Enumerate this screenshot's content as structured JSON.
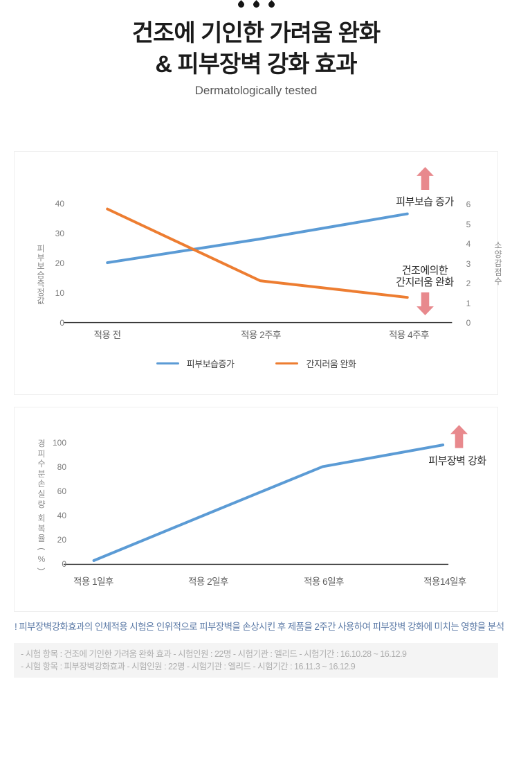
{
  "header": {
    "decoration_icon": "water-drop-icon",
    "title_line1": "건조에 기인한 가려움 완화",
    "title_line2": "& 피부장벽 강화 효과",
    "subtitle": "Dermatologically tested"
  },
  "colors": {
    "moisture_line_blue": "#5B9BD5",
    "itch_line_orange": "#ED7D31",
    "arrow_pink": "#E8898D",
    "warning_text_blue": "#5D7BA7",
    "info_box_bg": "#F4F4F4",
    "info_text_gray": "#AEAEAE"
  },
  "chart_data": [
    {
      "type": "line",
      "categories": [
        "적용 전",
        "적용 2주후",
        "적용 4주후"
      ],
      "series": [
        {
          "name": "피부보습증가",
          "axis": "left",
          "color": "#5B9BD5",
          "values": [
            20,
            28,
            36.5
          ]
        },
        {
          "name": "간지러움 완화",
          "axis": "right",
          "color": "#ED7D31",
          "values": [
            5.75,
            2.1,
            1.25
          ]
        }
      ],
      "left_axis": {
        "label": "피부보습측정값",
        "ticks": [
          0,
          10,
          20,
          30,
          40
        ],
        "range": [
          0,
          40
        ]
      },
      "right_axis": {
        "label": "소양감점수",
        "ticks": [
          0,
          1,
          2,
          3,
          4,
          5,
          6
        ],
        "range": [
          0,
          6
        ]
      },
      "annotations": [
        {
          "text": "피부보습 증가",
          "arrow": "up"
        },
        {
          "text_line1": "건조에의한",
          "text_line2": "간지러움 완화",
          "arrow": "down"
        }
      ],
      "legend": [
        "피부보습증가",
        "간지러움 완화"
      ],
      "grid": false,
      "legend_position": "bottom"
    },
    {
      "type": "line",
      "categories": [
        "적용 1일후",
        "적용 2일후",
        "적용 6일후",
        "적용14일후"
      ],
      "series": [
        {
          "name": "경피수분손실량 회복율",
          "axis": "left",
          "color": "#5B9BD5",
          "values": [
            2,
            41,
            80,
            98
          ]
        }
      ],
      "left_axis": {
        "label": "경피수분손실량 회복율(%)",
        "ticks": [
          0,
          20,
          40,
          60,
          80,
          100
        ],
        "range": [
          0,
          100
        ]
      },
      "annotations": [
        {
          "text": "피부장벽 강화",
          "arrow": "up"
        }
      ],
      "grid": false
    }
  ],
  "notes": {
    "warning": "! 피부장벽강화효과의 인체적용 시험은 인위적으로 피부장벽을 손상시킨 후 제품을 2주간 사용하여 피부장벽 강화에 미치는 영향을 분석",
    "tests": [
      "- 시험 항목 : 건조에 기인한 가려움 완화 효과  - 시험인원 : 22명  - 시험기관 : 엘리드  - 시험기간 : 16.10.28 ~ 16.12.9",
      "- 시험 항목 : 피부장벽강화효과  - 시험인원 : 22명  - 시험기관 : 엘리드  - 시험기간 : 16.11.3 ~ 16.12.9"
    ]
  }
}
